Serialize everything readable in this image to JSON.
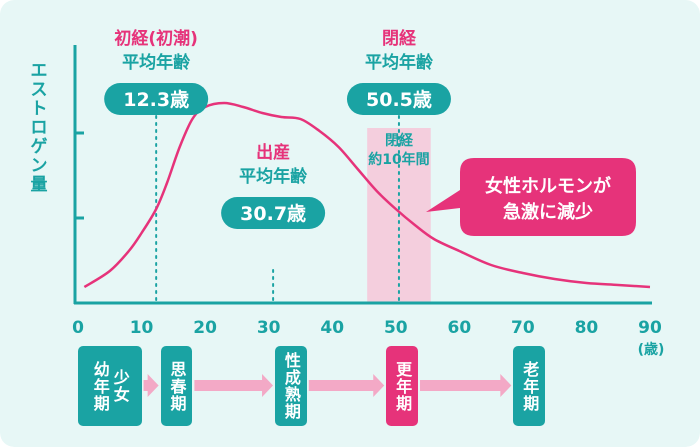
{
  "colors": {
    "background": "#e7f7f6",
    "teal": "#1aa3a3",
    "pink": "#e6337a",
    "curve": "#e6337a",
    "band": "#f6c7d8",
    "arrow": "#f3a9c6",
    "axis": "#1aa3a3"
  },
  "y_axis_label": "エストロゲン量",
  "chart_data": {
    "type": "line",
    "x_ticks": [
      "0",
      "10",
      "20",
      "30",
      "40",
      "50",
      "60",
      "70",
      "80",
      "90"
    ],
    "x_unit": "(歳)",
    "xlim": [
      0,
      90
    ],
    "ylim": [
      0,
      1
    ],
    "ylabel": "エストロゲン量",
    "series": [
      {
        "values": [
          {
            "x": 1,
            "y": 0.08
          },
          {
            "x": 5,
            "y": 0.16
          },
          {
            "x": 8,
            "y": 0.26
          },
          {
            "x": 10,
            "y": 0.35
          },
          {
            "x": 12.3,
            "y": 0.47
          },
          {
            "x": 14,
            "y": 0.6
          },
          {
            "x": 16,
            "y": 0.78
          },
          {
            "x": 18,
            "y": 0.92
          },
          {
            "x": 20,
            "y": 0.98
          },
          {
            "x": 23,
            "y": 1.0
          },
          {
            "x": 26,
            "y": 0.98
          },
          {
            "x": 29,
            "y": 0.95
          },
          {
            "x": 32,
            "y": 0.93
          },
          {
            "x": 35,
            "y": 0.92
          },
          {
            "x": 38,
            "y": 0.86
          },
          {
            "x": 41,
            "y": 0.78
          },
          {
            "x": 44,
            "y": 0.67
          },
          {
            "x": 47,
            "y": 0.56
          },
          {
            "x": 50,
            "y": 0.47
          },
          {
            "x": 53,
            "y": 0.39
          },
          {
            "x": 56,
            "y": 0.32
          },
          {
            "x": 60,
            "y": 0.26
          },
          {
            "x": 65,
            "y": 0.19
          },
          {
            "x": 70,
            "y": 0.15
          },
          {
            "x": 75,
            "y": 0.12
          },
          {
            "x": 80,
            "y": 0.1
          },
          {
            "x": 85,
            "y": 0.09
          },
          {
            "x": 90,
            "y": 0.08
          }
        ]
      }
    ],
    "band": {
      "x_start": 45.5,
      "x_end": 55.5,
      "label_lines": [
        "閉経",
        "約10年間"
      ]
    },
    "markers": [
      {
        "x": 12.3,
        "title_lines": [
          "初経(初潮)",
          "平均年齢"
        ],
        "value": "12.3歳"
      },
      {
        "x": 30.7,
        "title_lines": [
          "出産",
          "平均年齢"
        ],
        "value": "30.7歳"
      },
      {
        "x": 50.5,
        "title_lines": [
          "閉経",
          "平均年齢"
        ],
        "value": "50.5歳"
      }
    ],
    "callout": {
      "lines": [
        "女性ホルモンが",
        "急激に減少"
      ]
    }
  },
  "life_stages": [
    {
      "label": "少女期 幼年期",
      "columns": [
        "少女",
        "幼年期"
      ],
      "x_start": 0,
      "x_end": 10
    },
    {
      "label": "思春期",
      "columns": [
        "思春期"
      ],
      "x_start": 13,
      "x_end": 18
    },
    {
      "label": "性成熟期",
      "columns": [
        "性成熟期"
      ],
      "x_start": 31,
      "x_end": 36
    },
    {
      "label": "更年期",
      "columns": [
        "更年期"
      ],
      "x_start": 48.5,
      "x_end": 53.5,
      "highlight": true
    },
    {
      "label": "老年期",
      "columns": [
        "老年期"
      ],
      "x_start": 68.5,
      "x_end": 73.5
    }
  ]
}
